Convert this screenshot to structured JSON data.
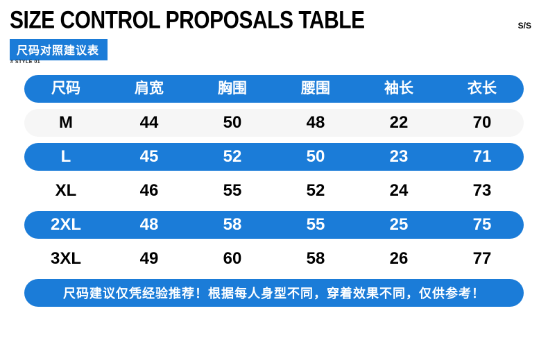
{
  "header": {
    "title": "SIZE CONTROL PROPOSALS TABLE",
    "corner_label": "S/S",
    "subtitle": "尺码对照建议表",
    "style_note": "# STYLE 01"
  },
  "table": {
    "columns": [
      "尺码",
      "肩宽",
      "胸围",
      "腰围",
      "袖长",
      "衣长"
    ],
    "rows": [
      {
        "size": "M",
        "values": [
          44,
          50,
          48,
          22,
          70
        ],
        "highlight": false
      },
      {
        "size": "L",
        "values": [
          45,
          52,
          50,
          23,
          71
        ],
        "highlight": true
      },
      {
        "size": "XL",
        "values": [
          46,
          55,
          52,
          24,
          73
        ],
        "highlight": false
      },
      {
        "size": "2XL",
        "values": [
          48,
          58,
          55,
          25,
          75
        ],
        "highlight": true
      },
      {
        "size": "3XL",
        "values": [
          49,
          60,
          58,
          26,
          77
        ],
        "highlight": false
      }
    ]
  },
  "footer": {
    "note": "尺码建议仅凭经验推荐！根据每人身型不同，穿着效果不同，仅供参考！"
  },
  "colors": {
    "accent": "#1b7cd8",
    "row_alt": "#f6f6f6",
    "text": "#000000"
  },
  "chart_data": {
    "type": "table",
    "title": "SIZE CONTROL PROPOSALS TABLE / 尺码对照建议表",
    "columns": [
      "尺码",
      "肩宽",
      "胸围",
      "腰围",
      "袖长",
      "衣长"
    ],
    "rows": [
      [
        "M",
        44,
        50,
        48,
        22,
        70
      ],
      [
        "L",
        45,
        52,
        50,
        23,
        71
      ],
      [
        "XL",
        46,
        55,
        52,
        24,
        73
      ],
      [
        "2XL",
        48,
        58,
        55,
        25,
        75
      ],
      [
        "3XL",
        49,
        60,
        58,
        26,
        77
      ]
    ],
    "note": "尺码建议仅凭经验推荐！根据每人身型不同，穿着效果不同，仅供参考！",
    "highlighted_rows": [
      "L",
      "2XL"
    ],
    "legend_position": "none",
    "grid": false
  }
}
